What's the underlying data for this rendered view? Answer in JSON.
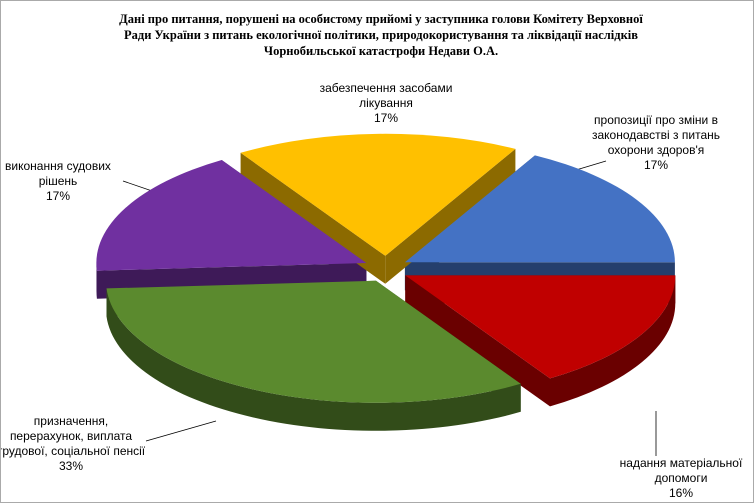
{
  "chart_data": {
    "type": "pie",
    "title": "Дані про питання, порушені на особистому прийомі у заступника голови Комітету Верховної Ради України з питань екологічної політики, природокористування та ліквідації наслідків Чорнобильської катастрофи Недави О.А.",
    "categories": [
      "пропозиції про зміни в законодавстві з питань охорони здоров'я",
      "надання матеріальної допомоги",
      "призначення, перерахунок, виплата трудової, соціальної пенсії",
      "виконання судових рішень",
      "забезпечення засобами лікування"
    ],
    "values": [
      17,
      16,
      33,
      17,
      17
    ],
    "value_labels": [
      "17%",
      "16%",
      "33%",
      "17%",
      "17%"
    ],
    "colors": [
      "#4472c4",
      "#c00000",
      "#5b8a2e",
      "#7030a0",
      "#ffc000"
    ]
  }
}
